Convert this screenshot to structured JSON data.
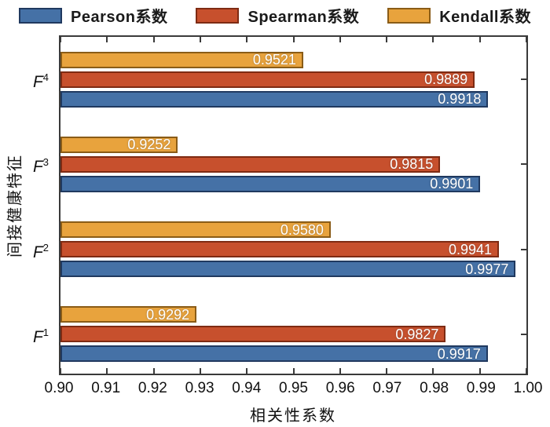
{
  "chart_data": {
    "type": "bar",
    "orientation": "horizontal",
    "xlabel": "相关性系数",
    "ylabel": "间接健康特征",
    "xlim": [
      0.9,
      1.0
    ],
    "xticks": [
      "0.90",
      "0.91",
      "0.92",
      "0.93",
      "0.94",
      "0.95",
      "0.96",
      "0.97",
      "0.98",
      "0.99",
      "1.00"
    ],
    "grid": false,
    "legend_position": "top",
    "value_labels_shown": true,
    "value_label_color": "#ffffff",
    "axis_color": "#3a3a3a",
    "categories_top_to_bottom": [
      {
        "base": "F",
        "sup": "4"
      },
      {
        "base": "F",
        "sup": "3"
      },
      {
        "base": "F",
        "sup": "2"
      },
      {
        "base": "F",
        "sup": "1"
      }
    ],
    "bar_order_within_group_top_to_bottom": [
      "Kendall系数",
      "Spearman系数",
      "Pearson系数"
    ],
    "series": [
      {
        "name": "Pearson系数",
        "fill": "#4571a6",
        "border": "#20395f",
        "values": [
          "0.9918",
          "0.9901",
          "0.9977",
          "0.9917"
        ]
      },
      {
        "name": "Spearman系数",
        "fill": "#c7502d",
        "border": "#7e2b13",
        "values": [
          "0.9889",
          "0.9815",
          "0.9941",
          "0.9827"
        ]
      },
      {
        "name": "Kendall系数",
        "fill": "#e8a33d",
        "border": "#8a5c17",
        "values": [
          "0.9521",
          "0.9252",
          "0.9580",
          "0.9292"
        ]
      }
    ]
  }
}
